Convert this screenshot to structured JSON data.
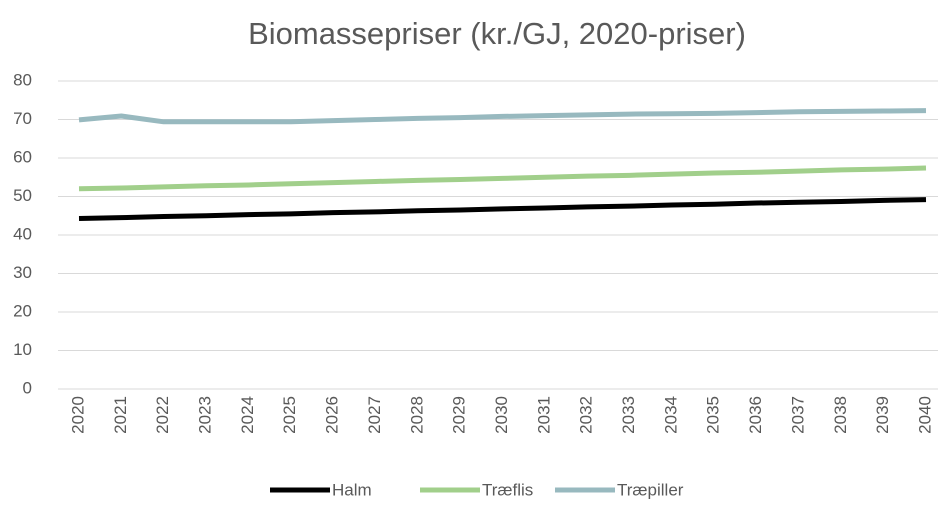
{
  "chart_data": {
    "type": "line",
    "title": "Biomassepriser (kr./GJ, 2020-priser)",
    "categories": [
      "2020",
      "2021",
      "2022",
      "2023",
      "2024",
      "2025",
      "2026",
      "2027",
      "2028",
      "2029",
      "2030",
      "2031",
      "2032",
      "2033",
      "2034",
      "2035",
      "2036",
      "2037",
      "2038",
      "2039",
      "2040"
    ],
    "series": [
      {
        "name": "Halm",
        "color": "#000000",
        "values": [
          44.3,
          44.5,
          44.8,
          45.0,
          45.3,
          45.5,
          45.8,
          46.0,
          46.3,
          46.5,
          46.8,
          47.0,
          47.3,
          47.5,
          47.8,
          48.0,
          48.3,
          48.5,
          48.7,
          49.0,
          49.2
        ]
      },
      {
        "name": "Træflis",
        "color": "#a1cf8b",
        "values": [
          52.0,
          52.2,
          52.5,
          52.8,
          53.0,
          53.3,
          53.6,
          53.9,
          54.2,
          54.4,
          54.7,
          55.0,
          55.3,
          55.5,
          55.8,
          56.1,
          56.3,
          56.6,
          56.9,
          57.1,
          57.4
        ]
      },
      {
        "name": "Træpiller",
        "color": "#98b9bf",
        "values": [
          69.9,
          70.9,
          69.4,
          69.4,
          69.4,
          69.4,
          69.7,
          70.0,
          70.3,
          70.5,
          70.8,
          71.0,
          71.2,
          71.4,
          71.5,
          71.6,
          71.8,
          72.0,
          72.1,
          72.2,
          72.3
        ]
      }
    ],
    "ylim": [
      0,
      80
    ],
    "yticks": [
      0,
      10,
      20,
      30,
      40,
      50,
      60,
      70,
      80
    ],
    "grid": true,
    "legend": "bottom"
  }
}
